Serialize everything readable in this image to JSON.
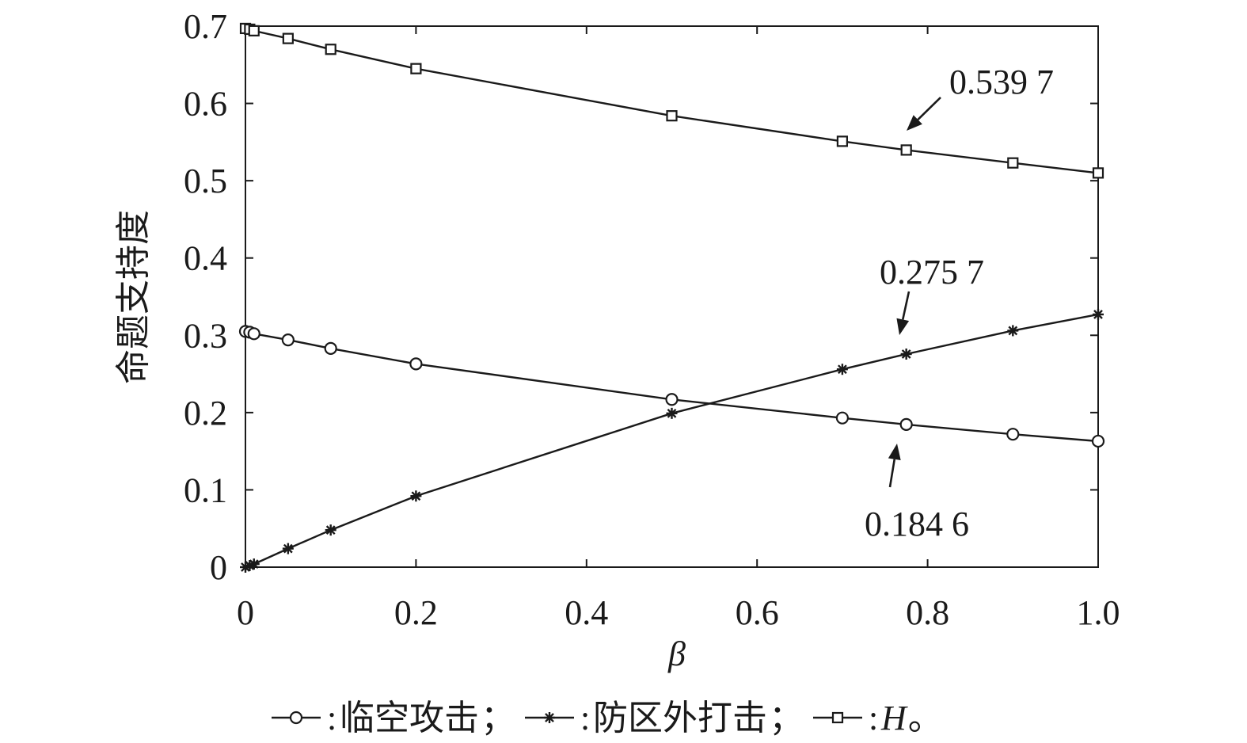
{
  "chart_data": {
    "type": "line",
    "xlabel": "β",
    "ylabel": "命题支持度",
    "xlim": [
      0,
      1.0
    ],
    "ylim": [
      0,
      0.7
    ],
    "x_ticks": [
      "0",
      "0.2",
      "0.4",
      "0.6",
      "0.8",
      "1.0"
    ],
    "y_ticks": [
      "0",
      "0.1",
      "0.2",
      "0.3",
      "0.4",
      "0.5",
      "0.6",
      "0.7"
    ],
    "grid": false,
    "legend_position": "bottom",
    "legend_separator": "；",
    "legend_end": "。",
    "series": [
      {
        "name": "临空攻击",
        "marker": "circle",
        "x": [
          0,
          0.005,
          0.01,
          0.05,
          0.1,
          0.2,
          0.5,
          0.7,
          0.775,
          0.9,
          1.0
        ],
        "values": [
          0.305,
          0.304,
          0.302,
          0.294,
          0.283,
          0.263,
          0.217,
          0.193,
          0.1846,
          0.172,
          0.163
        ]
      },
      {
        "name": "防区外打击",
        "marker": "asterisk",
        "x": [
          0,
          0.005,
          0.01,
          0.05,
          0.1,
          0.2,
          0.5,
          0.7,
          0.775,
          0.9,
          1.0
        ],
        "values": [
          0,
          0.002,
          0.004,
          0.024,
          0.048,
          0.092,
          0.199,
          0.256,
          0.2757,
          0.306,
          0.327
        ]
      },
      {
        "name": "H",
        "marker": "square",
        "x": [
          0,
          0.005,
          0.01,
          0.05,
          0.1,
          0.2,
          0.5,
          0.7,
          0.775,
          0.9,
          1.0
        ],
        "values": [
          0.697,
          0.696,
          0.694,
          0.684,
          0.67,
          0.645,
          0.584,
          0.551,
          0.5397,
          0.523,
          0.51
        ]
      }
    ],
    "annotations": [
      {
        "text": "0.539 7",
        "x": 0.775,
        "y": 0.5397
      },
      {
        "text": "0.275 7",
        "x": 0.775,
        "y": 0.2757
      },
      {
        "text": "0.184 6",
        "x": 0.775,
        "y": 0.1846
      }
    ]
  }
}
